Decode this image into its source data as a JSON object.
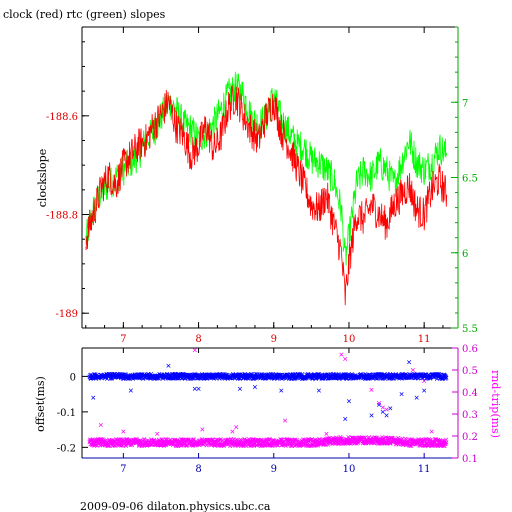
{
  "title": "clock (red) rtc (green) slopes",
  "footer": "2009-09-06  dilaton.physics.ubc.ca",
  "colors": {
    "red": "#ff0000",
    "green": "#00ff00",
    "blue": "#0000ff",
    "magenta": "#ff00ff",
    "red_axis": "#dd0000",
    "green_axis": "#00aa00",
    "blue_axis": "#0000aa"
  },
  "chart_data": [
    {
      "type": "line",
      "title": "clock (red) rtc (green) slopes",
      "ylabel": "clockslope",
      "xlim": [
        6.45,
        11.45
      ],
      "ylim": [
        -189.03,
        -188.42
      ],
      "y2lim": [
        5.5,
        7.5
      ],
      "xticks": [
        "7",
        "8",
        "9",
        "10",
        "11"
      ],
      "yticks": [
        "-188.6",
        "-188.8",
        "-189"
      ],
      "y2ticks": [
        "7",
        "6.5",
        "6",
        "5.5"
      ],
      "series": [
        {
          "color": "red",
          "axis": "left",
          "x": [
            6.5,
            6.6,
            6.7,
            6.8,
            6.9,
            7.0,
            7.1,
            7.2,
            7.3,
            7.4,
            7.5,
            7.6,
            7.7,
            7.8,
            7.9,
            8.0,
            8.1,
            8.2,
            8.3,
            8.4,
            8.5,
            8.6,
            8.7,
            8.8,
            8.9,
            9.0,
            9.1,
            9.2,
            9.3,
            9.4,
            9.5,
            9.6,
            9.7,
            9.8,
            9.9,
            9.95,
            10.0,
            10.1,
            10.2,
            10.3,
            10.4,
            10.5,
            10.6,
            10.7,
            10.8,
            10.9,
            11.0,
            11.1,
            11.2,
            11.3
          ],
          "y": [
            -188.85,
            -188.8,
            -188.75,
            -188.72,
            -188.74,
            -188.7,
            -188.68,
            -188.66,
            -188.65,
            -188.62,
            -188.6,
            -188.57,
            -188.62,
            -188.64,
            -188.68,
            -188.66,
            -188.62,
            -188.67,
            -188.64,
            -188.58,
            -188.56,
            -188.6,
            -188.63,
            -188.65,
            -188.6,
            -188.57,
            -188.63,
            -188.66,
            -188.7,
            -188.74,
            -188.78,
            -188.79,
            -188.76,
            -188.82,
            -188.88,
            -188.97,
            -188.9,
            -188.8,
            -188.81,
            -188.78,
            -188.8,
            -188.82,
            -188.78,
            -188.76,
            -188.74,
            -188.79,
            -188.8,
            -188.75,
            -188.73,
            -188.76
          ]
        },
        {
          "color": "green",
          "axis": "right",
          "x": [
            6.5,
            6.6,
            6.7,
            6.8,
            6.9,
            7.0,
            7.1,
            7.2,
            7.3,
            7.4,
            7.5,
            7.6,
            7.7,
            7.8,
            7.9,
            8.0,
            8.1,
            8.2,
            8.3,
            8.4,
            8.5,
            8.6,
            8.7,
            8.8,
            8.9,
            9.0,
            9.1,
            9.2,
            9.3,
            9.4,
            9.5,
            9.6,
            9.7,
            9.8,
            9.9,
            9.95,
            10.0,
            10.1,
            10.2,
            10.3,
            10.4,
            10.5,
            10.6,
            10.7,
            10.8,
            10.9,
            11.0,
            11.1,
            11.2,
            11.3
          ],
          "y": [
            6.08,
            6.28,
            6.4,
            6.45,
            6.5,
            6.55,
            6.6,
            6.65,
            6.75,
            6.8,
            6.9,
            7.0,
            6.95,
            6.85,
            6.82,
            6.75,
            6.8,
            6.85,
            6.95,
            7.05,
            7.1,
            7.05,
            6.9,
            6.85,
            6.9,
            7.05,
            6.88,
            6.8,
            6.72,
            6.7,
            6.62,
            6.6,
            6.55,
            6.48,
            6.28,
            5.95,
            6.1,
            6.45,
            6.55,
            6.5,
            6.6,
            6.55,
            6.45,
            6.6,
            6.75,
            6.6,
            6.55,
            6.6,
            6.7,
            6.65
          ]
        }
      ]
    },
    {
      "type": "scatter",
      "ylabel": "offset(ms)",
      "y2label": "rnd-trip(ms)",
      "xlim": [
        6.45,
        11.45
      ],
      "ylim": [
        -0.23,
        0.08
      ],
      "y2lim": [
        0.1,
        0.6
      ],
      "xticks": [
        "7",
        "8",
        "9",
        "10",
        "11"
      ],
      "yticks": [
        "0",
        "-0.1",
        "-0.2"
      ],
      "y2ticks": [
        "0.6",
        "0.5",
        "0.4",
        "0.3",
        "0.2",
        "0.1"
      ],
      "series": [
        {
          "color": "blue",
          "axis": "left",
          "marker": "x",
          "x": [
            6.55,
            6.8,
            7.05,
            7.3,
            7.55,
            7.8,
            8.05,
            8.3,
            8.55,
            8.8,
            9.05,
            9.3,
            9.55,
            9.8,
            10.05,
            10.3,
            10.55,
            10.8,
            11.05,
            11.3
          ],
          "y": [
            0.0,
            0.0,
            0.0,
            0.0,
            0.0,
            0.0,
            0.0,
            0.0,
            0.0,
            0.0,
            0.0,
            0.0,
            0.0,
            0.0,
            0.0,
            0.0,
            0.0,
            0.0,
            0.0,
            0.0
          ],
          "outliers_x": [
            6.6,
            7.1,
            7.6,
            7.95,
            8.0,
            8.55,
            8.75,
            9.1,
            9.6,
            9.95,
            10.0,
            10.3,
            10.4,
            10.45,
            10.5,
            10.55,
            10.7,
            10.8,
            10.9,
            11.0
          ],
          "outliers_y": [
            -0.06,
            -0.04,
            0.03,
            -0.035,
            -0.035,
            -0.035,
            -0.03,
            -0.04,
            -0.04,
            -0.12,
            -0.07,
            -0.11,
            -0.08,
            -0.1,
            -0.11,
            -0.09,
            -0.05,
            0.04,
            -0.06,
            -0.04
          ]
        },
        {
          "color": "magenta",
          "axis": "right",
          "marker": "x",
          "x": [
            6.55,
            6.8,
            7.05,
            7.3,
            7.55,
            7.8,
            8.05,
            8.3,
            8.55,
            8.8,
            9.05,
            9.3,
            9.55,
            9.8,
            10.05,
            10.3,
            10.55,
            10.8,
            11.05,
            11.3
          ],
          "y": [
            0.17,
            0.17,
            0.17,
            0.17,
            0.17,
            0.17,
            0.17,
            0.17,
            0.17,
            0.17,
            0.17,
            0.17,
            0.17,
            0.18,
            0.18,
            0.18,
            0.18,
            0.17,
            0.17,
            0.17
          ],
          "outliers_x": [
            6.7,
            7.0,
            7.45,
            7.95,
            8.05,
            8.45,
            8.5,
            9.15,
            9.7,
            9.9,
            9.95,
            10.3,
            10.4,
            10.45,
            10.5,
            10.85,
            11.0,
            11.1
          ],
          "outliers_y": [
            0.25,
            0.22,
            0.21,
            0.59,
            0.23,
            0.22,
            0.24,
            0.27,
            0.21,
            0.57,
            0.55,
            0.41,
            0.35,
            0.33,
            0.32,
            0.5,
            0.45,
            0.22
          ]
        }
      ]
    }
  ]
}
